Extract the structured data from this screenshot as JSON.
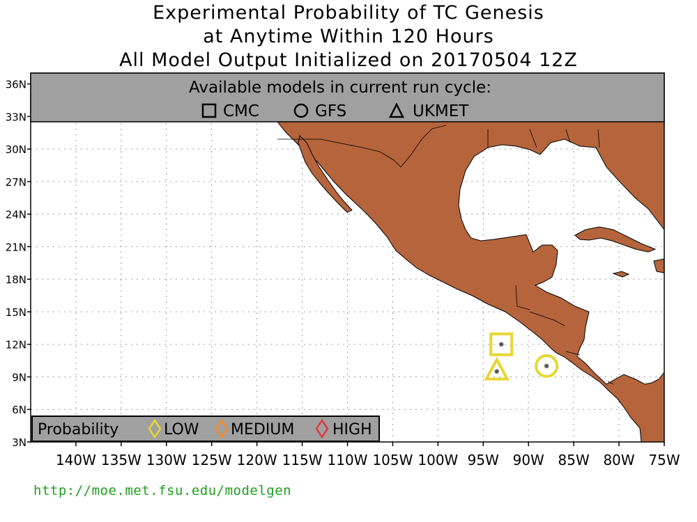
{
  "title": {
    "line1": "Experimental Probability of TC Genesis",
    "line2": "at Anytime Within 120 Hours",
    "line3": "All Model Output Initialized on 20170504 12Z"
  },
  "models_panel": {
    "heading": "Available models in current run cycle:",
    "models": [
      "CMC",
      "GFS",
      "UKMET"
    ]
  },
  "probability_legend": {
    "label": "Probability",
    "levels": [
      {
        "label": "LOW",
        "color": "#e6d732"
      },
      {
        "label": "MEDIUM",
        "color": "#f08c28"
      },
      {
        "label": "HIGH",
        "color": "#e03c3c"
      }
    ]
  },
  "map": {
    "lon_range": [
      -145,
      -75
    ],
    "lat_range": [
      3,
      37
    ],
    "lat_ticks": [
      "36N",
      "33N",
      "30N",
      "27N",
      "24N",
      "21N",
      "18N",
      "15N",
      "12N",
      "9N",
      "6N",
      "3N"
    ],
    "lon_ticks": [
      "140W",
      "135W",
      "130W",
      "125W",
      "120W",
      "115W",
      "110W",
      "105W",
      "100W",
      "95W",
      "90W",
      "85W",
      "80W",
      "75W"
    ],
    "land_color": "#b5643c",
    "panel_color": "#a0a0a0"
  },
  "genesis_markers": [
    {
      "model": "CMC",
      "shape": "square",
      "lon": -93.0,
      "lat": 12.0,
      "probability": "LOW"
    },
    {
      "model": "UKMET",
      "shape": "triangle",
      "lon": -93.5,
      "lat": 9.5,
      "probability": "LOW"
    },
    {
      "model": "GFS",
      "shape": "circle",
      "lon": -88.0,
      "lat": 10.0,
      "probability": "LOW"
    }
  ],
  "footer": {
    "url": "http://moe.met.fsu.edu/modelgen"
  }
}
